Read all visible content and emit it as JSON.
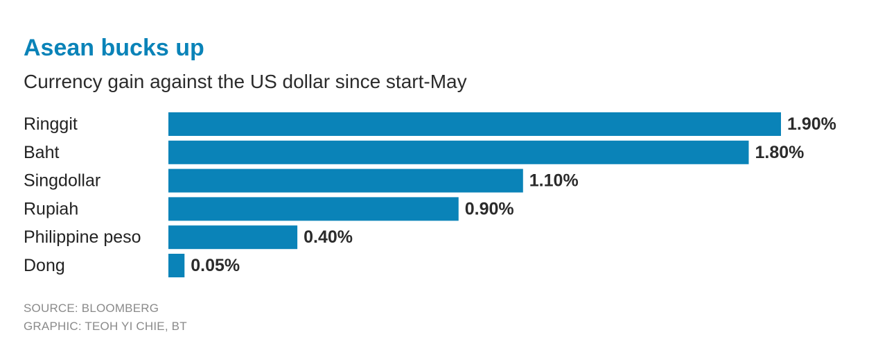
{
  "colors": {
    "accent": "#0a83b8",
    "bar": "#0a83b8"
  },
  "chart_data": {
    "type": "bar",
    "orientation": "horizontal",
    "title": "Asean bucks up",
    "subtitle": "Currency gain against the US dollar since start-May",
    "categories": [
      "Ringgit",
      "Baht",
      "Singdollar",
      "Rupiah",
      "Philippine peso",
      "Dong"
    ],
    "values": [
      1.9,
      1.8,
      1.1,
      0.9,
      0.4,
      0.05
    ],
    "value_labels": [
      "1.90%",
      "1.80%",
      "1.10%",
      "0.90%",
      "0.40%",
      "0.05%"
    ],
    "unit": "%",
    "xlim": [
      0,
      1.9
    ],
    "grid": false,
    "legend": "none"
  },
  "footer": {
    "source": "SOURCE: BLOOMBERG",
    "graphic": "GRAPHIC: TEOH YI CHIE, BT"
  }
}
